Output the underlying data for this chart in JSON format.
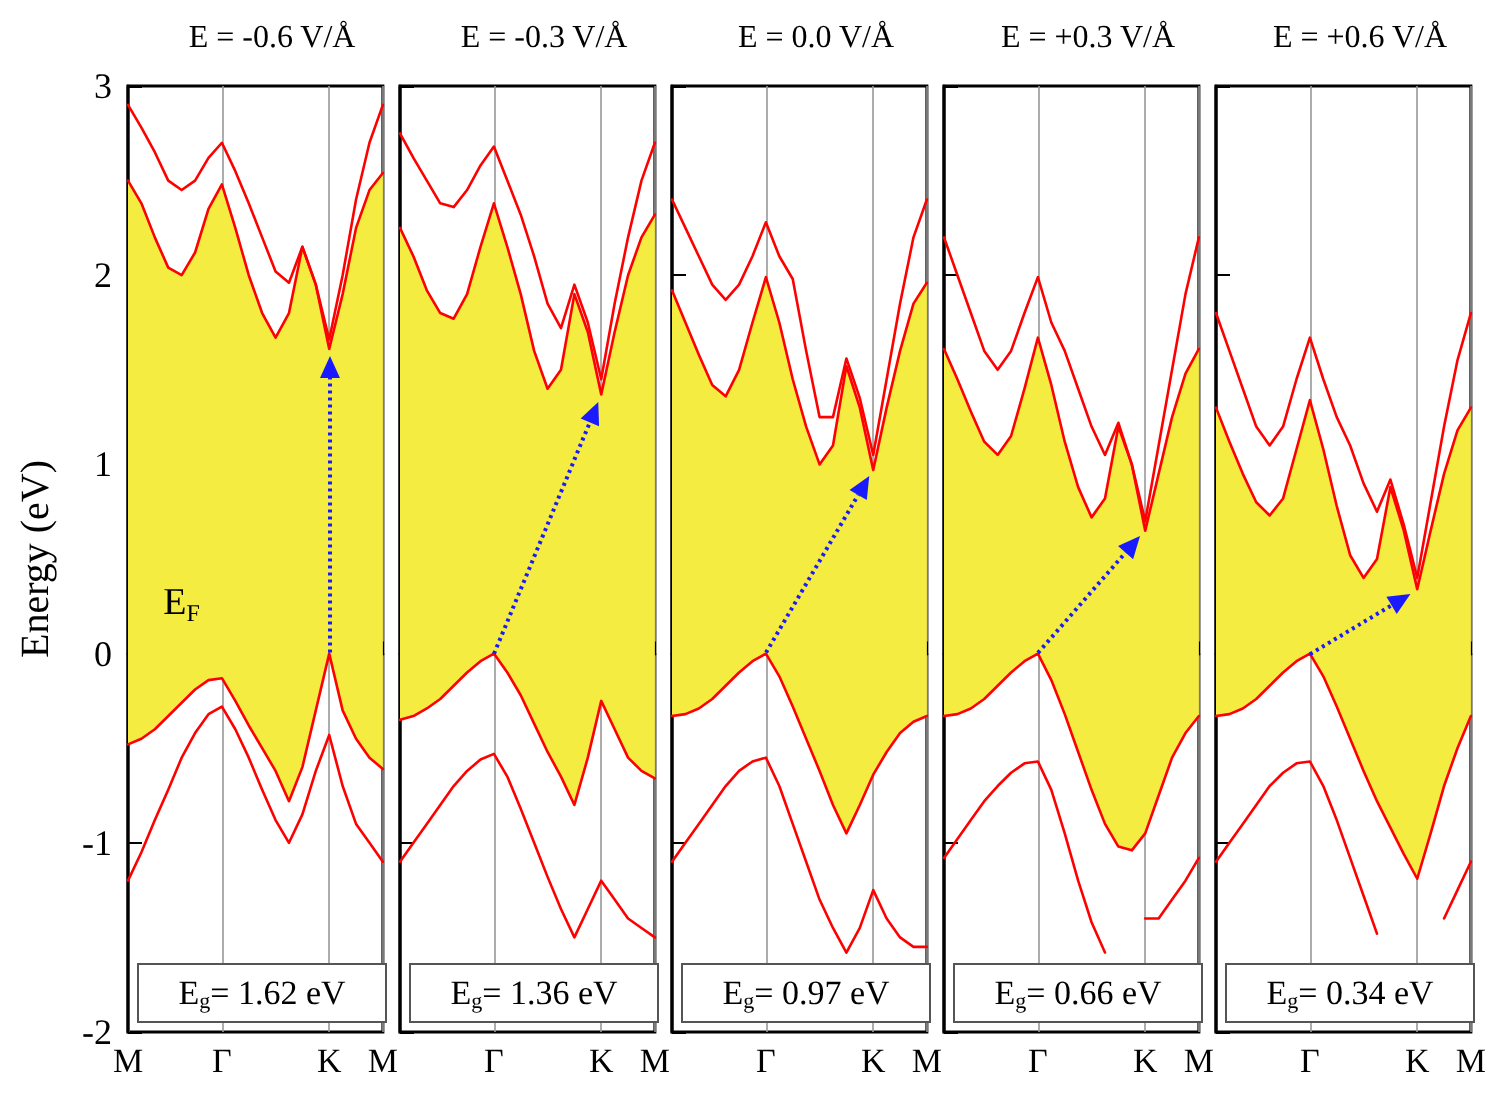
{
  "chart_data": [
    {
      "type": "line",
      "title": "E = -0.6 V/Å",
      "ylabel": "Energy (eV)",
      "categories": [
        "M",
        null,
        null,
        null,
        null,
        null,
        null,
        "Γ",
        null,
        null,
        null,
        null,
        null,
        null,
        null,
        "K",
        null,
        null,
        null,
        "M"
      ],
      "ylim": [
        -2,
        3
      ],
      "yticks": [
        -2,
        -1,
        0,
        1,
        2,
        3
      ],
      "grid": "x",
      "marker": "none",
      "annotations": [
        "E$_{F}$",
        "E$_{g}$= 1.62 eV"
      ],
      "series": [
        {
          "color": "#f5ec42",
          "values": [
            null,
            null,
            null,
            null,
            null,
            null,
            null,
            null,
            null,
            null,
            null,
            null,
            null,
            null,
            null,
            null,
            null,
            null,
            null,
            null
          ],
          "upper": [
            2.5,
            2.38,
            2.2,
            2.04,
            2.0,
            2.12,
            2.35,
            2.48,
            2.25,
            2.0,
            1.8,
            1.67,
            1.8,
            2.15,
            1.95,
            1.61,
            1.9,
            2.25,
            2.45,
            2.54
          ],
          "lower": [
            -0.48,
            -0.45,
            -0.4,
            -0.33,
            -0.26,
            -0.19,
            -0.14,
            -0.13,
            -0.25,
            -0.38,
            -0.5,
            -0.62,
            -0.78,
            -0.6,
            -0.3,
            0,
            -0.3,
            -0.45,
            -0.55,
            -0.61
          ]
        },
        {
          "color": "#ff0000",
          "values": [
            -1.2,
            -1.05,
            -0.88,
            -0.72,
            -0.55,
            -0.42,
            -0.32,
            -0.28,
            -0.4,
            -0.55,
            -0.72,
            -0.88,
            -1.0,
            -0.85,
            -0.62,
            -0.43,
            -0.7,
            -0.9,
            -1.0,
            -1.1
          ]
        },
        {
          "color": "#ff0000",
          "values": [
            -0.48,
            -0.45,
            -0.4,
            -0.33,
            -0.26,
            -0.19,
            -0.14,
            -0.13,
            -0.25,
            -0.38,
            -0.5,
            -0.62,
            -0.78,
            -0.6,
            -0.3,
            0,
            -0.3,
            -0.45,
            -0.55,
            -0.61
          ]
        },
        {
          "color": "#ff0000",
          "values": [
            2.5,
            2.38,
            2.2,
            2.04,
            2.0,
            2.12,
            2.35,
            2.48,
            2.25,
            2.0,
            1.8,
            1.67,
            1.8,
            2.15,
            1.95,
            1.61,
            1.9,
            2.25,
            2.45,
            2.54
          ]
        },
        {
          "color": "#ff0000",
          "values": [
            2.9,
            2.78,
            2.65,
            2.5,
            2.45,
            2.5,
            2.62,
            2.7,
            2.55,
            2.38,
            2.2,
            2.02,
            1.96,
            2.15,
            1.95,
            1.66,
            2.0,
            2.4,
            2.7,
            2.9
          ]
        }
      ]
    },
    {
      "type": "line",
      "title": "E = -0.3 V/Å",
      "categories": [
        null,
        null,
        null,
        null,
        null,
        null,
        null,
        "Γ",
        null,
        null,
        null,
        null,
        null,
        null,
        null,
        "K",
        null,
        null,
        null,
        "M"
      ],
      "ylim": [
        -2,
        3
      ],
      "yticks": [
        -2,
        -1,
        0,
        1,
        2,
        3
      ],
      "tick_labels": "x",
      "grid": "x",
      "marker": "none",
      "annotations": [
        "E$_{g}$= 1.36 eV"
      ],
      "series": [
        {
          "color": "#f5ec42",
          "values": [
            null,
            null,
            null,
            null,
            null,
            null,
            null,
            null,
            null,
            null,
            null,
            null,
            null,
            null,
            null,
            null,
            null,
            null,
            null,
            null
          ],
          "upper": [
            2.25,
            2.1,
            1.92,
            1.8,
            1.77,
            1.9,
            2.15,
            2.38,
            2.15,
            1.9,
            1.6,
            1.4,
            1.5,
            1.9,
            1.7,
            1.37,
            1.7,
            2.0,
            2.2,
            2.32
          ],
          "lower": [
            -0.35,
            -0.33,
            -0.29,
            -0.24,
            -0.17,
            -0.1,
            -0.04,
            0,
            -0.1,
            -0.22,
            -0.37,
            -0.52,
            -0.65,
            -0.8,
            -0.55,
            -0.25,
            -0.4,
            -0.55,
            -0.62,
            -0.66
          ]
        },
        {
          "color": "#ff0000",
          "values": [
            -1.1,
            -1.0,
            -0.9,
            -0.8,
            -0.7,
            -0.62,
            -0.56,
            -0.53,
            -0.65,
            -0.82,
            -1.0,
            -1.18,
            -1.35,
            -1.5,
            -1.35,
            -1.2,
            -1.3,
            -1.4,
            -1.45,
            -1.5
          ]
        },
        {
          "color": "#ff0000",
          "values": [
            -0.35,
            -0.33,
            -0.29,
            -0.24,
            -0.17,
            -0.1,
            -0.04,
            0,
            -0.1,
            -0.22,
            -0.37,
            -0.52,
            -0.65,
            -0.8,
            -0.55,
            -0.25,
            -0.4,
            -0.55,
            -0.62,
            -0.66
          ]
        },
        {
          "color": "#ff0000",
          "values": [
            2.25,
            2.1,
            1.92,
            1.8,
            1.77,
            1.9,
            2.15,
            2.38,
            2.15,
            1.9,
            1.6,
            1.4,
            1.5,
            1.9,
            1.7,
            1.37,
            1.7,
            2.0,
            2.2,
            2.32
          ]
        },
        {
          "color": "#ff0000",
          "values": [
            2.75,
            2.62,
            2.5,
            2.38,
            2.36,
            2.45,
            2.58,
            2.68,
            2.5,
            2.32,
            2.1,
            1.85,
            1.72,
            1.95,
            1.75,
            1.45,
            1.85,
            2.2,
            2.5,
            2.7
          ]
        }
      ]
    },
    {
      "type": "line",
      "title": "E = 0.0 V/Å",
      "categories": [
        null,
        null,
        null,
        null,
        null,
        null,
        null,
        "Γ",
        null,
        null,
        null,
        null,
        null,
        null,
        null,
        "K",
        null,
        null,
        null,
        "M"
      ],
      "ylim": [
        -2,
        3
      ],
      "yticks": [
        -2,
        -1,
        0,
        1,
        2,
        3
      ],
      "tick_labels": "x",
      "grid": "x",
      "marker": "none",
      "annotations": [
        "E$_{g}$= 0.97 eV"
      ],
      "series": [
        {
          "color": "#f5ec42",
          "values": [
            null,
            null,
            null,
            null,
            null,
            null,
            null,
            null,
            null,
            null,
            null,
            null,
            null,
            null,
            null,
            null,
            null,
            null,
            null,
            null
          ],
          "upper": [
            1.92,
            1.75,
            1.58,
            1.42,
            1.36,
            1.5,
            1.75,
            1.99,
            1.75,
            1.45,
            1.2,
            1.0,
            1.1,
            1.52,
            1.3,
            0.97,
            1.3,
            1.6,
            1.85,
            1.96
          ],
          "lower": [
            -0.33,
            -0.32,
            -0.29,
            -0.24,
            -0.17,
            -0.1,
            -0.04,
            0,
            -0.12,
            -0.28,
            -0.45,
            -0.62,
            -0.8,
            -0.95,
            -0.8,
            -0.64,
            -0.52,
            -0.42,
            -0.36,
            -0.33
          ]
        },
        {
          "color": "#ff0000",
          "values": [
            -1.1,
            -1.0,
            -0.9,
            -0.8,
            -0.7,
            -0.62,
            -0.57,
            -0.55,
            -0.7,
            -0.9,
            -1.1,
            -1.3,
            -1.45,
            -1.58,
            -1.45,
            -1.25,
            -1.4,
            -1.5,
            -1.55,
            -1.55
          ]
        },
        {
          "color": "#ff0000",
          "values": [
            -0.33,
            -0.32,
            -0.29,
            -0.24,
            -0.17,
            -0.1,
            -0.04,
            0,
            -0.12,
            -0.28,
            -0.45,
            -0.62,
            -0.8,
            -0.95,
            -0.8,
            -0.64,
            -0.52,
            -0.42,
            -0.36,
            -0.33
          ]
        },
        {
          "color": "#ff0000",
          "values": [
            1.92,
            1.75,
            1.58,
            1.42,
            1.36,
            1.5,
            1.75,
            1.99,
            1.75,
            1.45,
            1.2,
            1.0,
            1.1,
            1.52,
            1.3,
            0.97,
            1.3,
            1.6,
            1.85,
            1.96
          ]
        },
        {
          "color": "#ff0000",
          "values": [
            2.4,
            2.25,
            2.1,
            1.95,
            1.87,
            1.95,
            2.1,
            2.28,
            2.1,
            1.98,
            1.6,
            1.25,
            1.25,
            1.56,
            1.35,
            1.05,
            1.45,
            1.85,
            2.2,
            2.4
          ]
        }
      ]
    },
    {
      "type": "line",
      "title": "E = +0.3 V/Å",
      "categories": [
        null,
        null,
        null,
        null,
        null,
        null,
        null,
        "Γ",
        null,
        null,
        null,
        null,
        null,
        null,
        null,
        "K",
        null,
        null,
        null,
        "M"
      ],
      "ylim": [
        -2,
        3
      ],
      "yticks": [
        -2,
        -1,
        0,
        1,
        2,
        3
      ],
      "tick_labels": "x",
      "grid": "x",
      "marker": "none",
      "annotations": [
        "E$_{g}$= 0.66 eV"
      ],
      "series": [
        {
          "color": "#f5ec42",
          "values": [
            null,
            null,
            null,
            null,
            null,
            null,
            null,
            null,
            null,
            null,
            null,
            null,
            null,
            null,
            null,
            null,
            null,
            null,
            null,
            null
          ],
          "upper": [
            1.61,
            1.45,
            1.28,
            1.12,
            1.05,
            1.15,
            1.4,
            1.67,
            1.42,
            1.12,
            0.88,
            0.72,
            0.82,
            1.2,
            1.0,
            0.65,
            0.95,
            1.25,
            1.48,
            1.61
          ],
          "lower": [
            -0.33,
            -0.32,
            -0.29,
            -0.24,
            -0.17,
            -0.1,
            -0.04,
            0,
            -0.14,
            -0.32,
            -0.52,
            -0.72,
            -0.9,
            -1.02,
            -1.04,
            -0.95,
            -0.75,
            -0.55,
            -0.42,
            -0.33
          ]
        },
        {
          "color": "#ff0000",
          "values": [
            -1.08,
            -0.98,
            -0.88,
            -0.78,
            -0.7,
            -0.63,
            -0.58,
            -0.57,
            -0.72,
            -0.95,
            -1.2,
            -1.42,
            -1.58,
            null,
            null,
            -1.4,
            -1.4,
            -1.3,
            -1.2,
            -1.08
          ]
        },
        {
          "color": "#ff0000",
          "values": [
            -0.33,
            -0.32,
            -0.29,
            -0.24,
            -0.17,
            -0.1,
            -0.04,
            0,
            -0.14,
            -0.32,
            -0.52,
            -0.72,
            -0.9,
            -1.02,
            -1.04,
            -0.95,
            -0.75,
            -0.55,
            -0.42,
            -0.33
          ]
        },
        {
          "color": "#ff0000",
          "values": [
            1.61,
            1.45,
            1.28,
            1.12,
            1.05,
            1.15,
            1.4,
            1.67,
            1.42,
            1.12,
            0.88,
            0.72,
            0.82,
            1.2,
            1.0,
            0.65,
            0.95,
            1.25,
            1.48,
            1.61
          ]
        },
        {
          "color": "#ff0000",
          "values": [
            2.2,
            2.0,
            1.8,
            1.6,
            1.5,
            1.6,
            1.8,
            1.99,
            1.75,
            1.6,
            1.4,
            1.2,
            1.05,
            1.22,
            1.0,
            0.7,
            1.1,
            1.5,
            1.9,
            2.2
          ]
        }
      ]
    },
    {
      "type": "line",
      "title": "E = +0.6 V/Å",
      "categories": [
        null,
        null,
        null,
        null,
        null,
        null,
        null,
        "Γ",
        null,
        null,
        null,
        null,
        null,
        null,
        null,
        "K",
        null,
        null,
        null,
        "M"
      ],
      "ylim": [
        -2,
        3
      ],
      "yticks": [
        -2,
        -1,
        0,
        1,
        2,
        3
      ],
      "tick_labels": "x",
      "grid": "x",
      "marker": "none",
      "annotations": [
        "E$_{g}$= 0.34 eV"
      ],
      "series": [
        {
          "color": "#f5ec42",
          "values": [
            null,
            null,
            null,
            null,
            null,
            null,
            null,
            null,
            null,
            null,
            null,
            null,
            null,
            null,
            null,
            null,
            null,
            null,
            null,
            null
          ],
          "upper": [
            1.3,
            1.12,
            0.95,
            0.8,
            0.73,
            0.82,
            1.08,
            1.34,
            1.08,
            0.78,
            0.52,
            0.4,
            0.5,
            0.88,
            0.65,
            0.34,
            0.65,
            0.95,
            1.18,
            1.3
          ],
          "lower": [
            -0.33,
            -0.32,
            -0.29,
            -0.24,
            -0.17,
            -0.1,
            -0.04,
            0,
            -0.12,
            -0.28,
            -0.45,
            -0.62,
            -0.78,
            -0.92,
            -1.06,
            -1.19,
            -0.95,
            -0.7,
            -0.5,
            -0.33
          ]
        },
        {
          "color": "#ff0000",
          "values": [
            -1.1,
            -1.0,
            -0.9,
            -0.8,
            -0.7,
            -0.63,
            -0.58,
            -0.57,
            -0.7,
            -0.88,
            -1.08,
            -1.28,
            -1.48,
            null,
            null,
            null,
            null,
            -1.4,
            -1.25,
            -1.1
          ]
        },
        {
          "color": "#ff0000",
          "values": [
            -0.33,
            -0.32,
            -0.29,
            -0.24,
            -0.17,
            -0.1,
            -0.04,
            0,
            -0.12,
            -0.28,
            -0.45,
            -0.62,
            -0.78,
            -0.92,
            -1.06,
            -1.19,
            -0.95,
            -0.7,
            -0.5,
            -0.33
          ]
        },
        {
          "color": "#ff0000",
          "values": [
            1.3,
            1.12,
            0.95,
            0.8,
            0.73,
            0.82,
            1.08,
            1.34,
            1.08,
            0.78,
            0.52,
            0.4,
            0.5,
            0.88,
            0.65,
            0.34,
            0.65,
            0.95,
            1.18,
            1.3
          ]
        },
        {
          "color": "#ff0000",
          "values": [
            1.8,
            1.6,
            1.4,
            1.2,
            1.1,
            1.2,
            1.45,
            1.67,
            1.45,
            1.25,
            1.1,
            0.9,
            0.75,
            0.92,
            0.68,
            0.4,
            0.8,
            1.2,
            1.55,
            1.8
          ]
        }
      ]
    }
  ]
}
